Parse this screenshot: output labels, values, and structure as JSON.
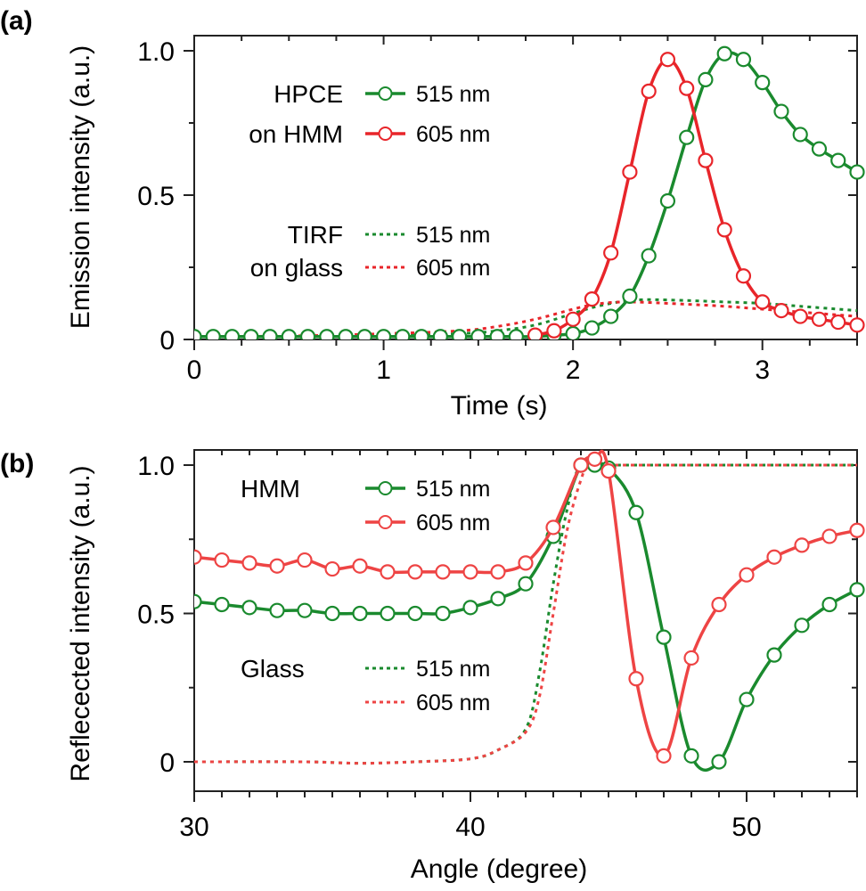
{
  "colors": {
    "green": "#1a8a2e",
    "red": "#e8252a",
    "red_light": "#ee4444"
  },
  "chart_data": [
    {
      "panel": "(a)",
      "type": "line",
      "title": "",
      "xlabel": "Time (s)",
      "ylabel": "Emission intensity (a.u.)",
      "xlim": [
        0,
        3.5
      ],
      "ylim": [
        0,
        1.05
      ],
      "xticks": [
        0,
        1,
        2,
        3
      ],
      "xtick_labels": [
        "0",
        "1",
        "2",
        "3"
      ],
      "yticks": [
        0,
        0.5,
        1.0
      ],
      "ytick_labels": [
        "0",
        "0.5",
        "1.0"
      ],
      "grid": false,
      "legend": {
        "placement": "top-left",
        "groups": [
          {
            "label_lines": [
              "HPCE",
              "on HMM"
            ],
            "entries": [
              {
                "label": "515 nm",
                "series": "HPCE on HMM 515 nm",
                "style": "solid-marker",
                "color": "green"
              },
              {
                "label": "605 nm",
                "series": "HPCE on HMM 605 nm",
                "style": "solid-marker",
                "color": "red"
              }
            ]
          },
          {
            "label_lines": [
              "TIRF",
              "on glass"
            ],
            "entries": [
              {
                "label": "515 nm",
                "series": "TIRF on glass 515 nm",
                "style": "dotted",
                "color": "green"
              },
              {
                "label": "605 nm",
                "series": "TIRF on glass 605 nm",
                "style": "dotted",
                "color": "red"
              }
            ]
          }
        ]
      },
      "series": [
        {
          "name": "HPCE on HMM 515 nm",
          "color": "green",
          "style": "solid-marker",
          "x": [
            0,
            0.1,
            0.2,
            0.3,
            0.4,
            0.5,
            0.6,
            0.7,
            0.8,
            0.9,
            1.0,
            1.1,
            1.2,
            1.3,
            1.4,
            1.5,
            1.6,
            1.7,
            1.8,
            1.9,
            2.0,
            2.1,
            2.2,
            2.3,
            2.4,
            2.5,
            2.6,
            2.7,
            2.8,
            2.9,
            3.0,
            3.1,
            3.2,
            3.3,
            3.4,
            3.5
          ],
          "y": [
            0.01,
            0.01,
            0.01,
            0.01,
            0.01,
            0.01,
            0.01,
            0.01,
            0.01,
            0.01,
            0.01,
            0.01,
            0.01,
            0.01,
            0.01,
            0.01,
            0.01,
            0.01,
            0.01,
            0.015,
            0.02,
            0.04,
            0.08,
            0.15,
            0.29,
            0.48,
            0.7,
            0.9,
            0.99,
            0.97,
            0.89,
            0.79,
            0.71,
            0.66,
            0.62,
            0.58
          ]
        },
        {
          "name": "HPCE on HMM 605 nm",
          "color": "red",
          "style": "solid-marker",
          "x": [
            1.8,
            1.9,
            2.0,
            2.1,
            2.2,
            2.3,
            2.4,
            2.5,
            2.6,
            2.7,
            2.8,
            2.9,
            3.0,
            3.1,
            3.2,
            3.3,
            3.4,
            3.5
          ],
          "y": [
            0.015,
            0.03,
            0.07,
            0.14,
            0.3,
            0.58,
            0.86,
            0.97,
            0.87,
            0.62,
            0.38,
            0.22,
            0.13,
            0.1,
            0.08,
            0.07,
            0.06,
            0.05
          ]
        },
        {
          "name": "TIRF on glass 515 nm",
          "color": "green",
          "style": "dotted",
          "x": [
            0,
            0.5,
            1.0,
            1.4,
            1.6,
            1.8,
            2.0,
            2.1,
            2.2,
            2.3,
            2.4,
            2.6,
            2.8,
            3.0,
            3.2,
            3.4,
            3.5
          ],
          "y": [
            0.01,
            0.01,
            0.012,
            0.02,
            0.03,
            0.05,
            0.09,
            0.11,
            0.125,
            0.135,
            0.138,
            0.135,
            0.13,
            0.125,
            0.115,
            0.105,
            0.1
          ]
        },
        {
          "name": "TIRF on glass 605 nm",
          "color": "red",
          "style": "dotted",
          "x": [
            0,
            0.5,
            1.0,
            1.4,
            1.6,
            1.8,
            2.0,
            2.1,
            2.2,
            2.3,
            2.4,
            2.6,
            2.8,
            3.0,
            3.2,
            3.4,
            3.5
          ],
          "y": [
            0.01,
            0.012,
            0.02,
            0.03,
            0.045,
            0.07,
            0.105,
            0.12,
            0.128,
            0.13,
            0.128,
            0.122,
            0.115,
            0.105,
            0.095,
            0.085,
            0.08
          ]
        }
      ]
    },
    {
      "panel": "(b)",
      "type": "line",
      "title": "",
      "xlabel": "Angle (degree)",
      "ylabel": "Reflected intensity (a.u.)",
      "ylabel_as_printed": "Reflecected intensity (a.u.)",
      "xlim": [
        30,
        54
      ],
      "ylim": [
        -0.1,
        1.02
      ],
      "xticks": [
        30,
        40,
        50
      ],
      "xtick_labels": [
        "30",
        "40",
        "50"
      ],
      "yticks": [
        0,
        0.5,
        1.0
      ],
      "ytick_labels": [
        "0",
        "0.5",
        "1.0"
      ],
      "grid": false,
      "legend": {
        "placement": "left",
        "groups": [
          {
            "label_lines": [
              "HMM"
            ],
            "entries": [
              {
                "label": "515 nm",
                "series": "HMM 515 nm",
                "style": "solid-marker",
                "color": "green"
              },
              {
                "label": "605 nm",
                "series": "HMM 605 nm",
                "style": "solid-marker",
                "color": "red"
              }
            ]
          },
          {
            "label_lines": [
              "Glass"
            ],
            "entries": [
              {
                "label": "515 nm",
                "series": "Glass 515 nm",
                "style": "dotted",
                "color": "green"
              },
              {
                "label": "605 nm",
                "series": "Glass 605 nm",
                "style": "dotted",
                "color": "red"
              }
            ]
          }
        ]
      },
      "series": [
        {
          "name": "HMM 515 nm",
          "color": "green",
          "style": "solid-marker",
          "x": [
            30,
            31,
            32,
            33,
            34,
            35,
            36,
            37,
            38,
            39,
            40,
            41,
            42,
            43,
            44,
            44.5,
            45,
            46,
            47,
            48,
            49,
            50,
            51,
            52,
            53,
            54
          ],
          "y": [
            0.54,
            0.53,
            0.52,
            0.51,
            0.51,
            0.5,
            0.5,
            0.5,
            0.5,
            0.5,
            0.52,
            0.55,
            0.6,
            0.76,
            1.0,
            1.0,
            0.99,
            0.84,
            0.42,
            0.02,
            0.0,
            0.21,
            0.36,
            0.46,
            0.53,
            0.58
          ]
        },
        {
          "name": "HMM 605 nm",
          "color": "red",
          "style": "solid-marker",
          "x": [
            30,
            31,
            32,
            33,
            34,
            35,
            36,
            37,
            38,
            39,
            40,
            41,
            42,
            43,
            44,
            44.5,
            45,
            46,
            47,
            48,
            49,
            50,
            51,
            52,
            53,
            54
          ],
          "y": [
            0.69,
            0.68,
            0.67,
            0.66,
            0.68,
            0.65,
            0.66,
            0.64,
            0.64,
            0.64,
            0.64,
            0.64,
            0.67,
            0.79,
            1.0,
            1.02,
            0.98,
            0.28,
            0.02,
            0.35,
            0.53,
            0.63,
            0.69,
            0.73,
            0.76,
            0.78
          ]
        },
        {
          "name": "Glass 515 nm",
          "color": "green",
          "style": "dotted",
          "x": [
            30,
            34,
            36,
            38,
            40,
            41,
            42,
            42.5,
            43,
            43.5,
            44,
            45,
            48,
            51,
            54
          ],
          "y": [
            0.0,
            0.0,
            -0.005,
            0.0,
            0.01,
            0.04,
            0.11,
            0.3,
            0.6,
            0.85,
            1.0,
            1.0,
            1.0,
            1.0,
            1.0
          ]
        },
        {
          "name": "Glass 605 nm",
          "color": "red",
          "style": "dotted",
          "x": [
            30,
            34,
            36,
            38,
            40,
            41,
            42,
            42.5,
            43,
            43.5,
            44,
            44.3,
            45,
            48,
            51,
            54
          ],
          "y": [
            0.0,
            0.0,
            -0.005,
            0.0,
            0.01,
            0.04,
            0.1,
            0.22,
            0.5,
            0.78,
            0.95,
            1.0,
            1.0,
            1.0,
            1.0,
            1.0
          ]
        }
      ]
    }
  ]
}
